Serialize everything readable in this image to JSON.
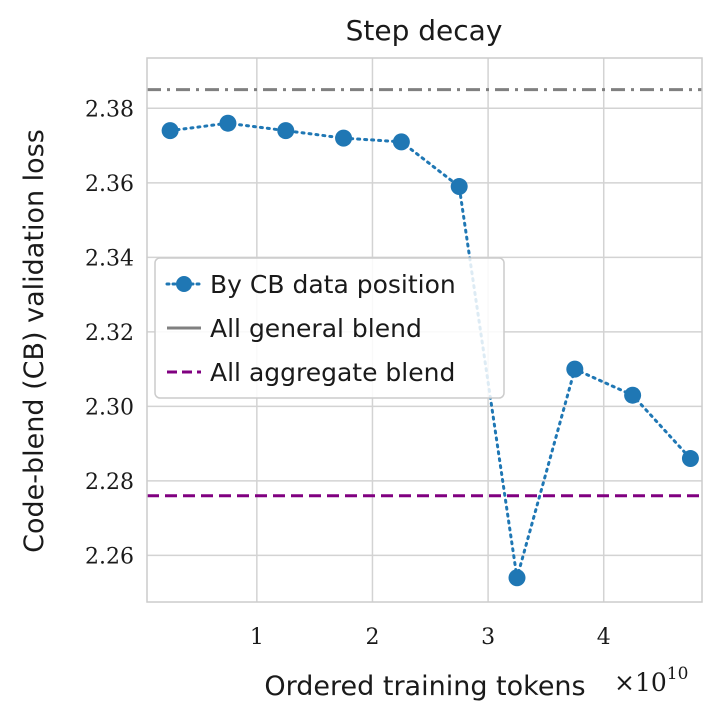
{
  "chart_data": {
    "type": "line",
    "title": "Step decay",
    "xlabel": "Ordered training tokens",
    "x_multiplier": "×10",
    "x_multiplier_exponent": "10",
    "ylabel": "Code-blend (CB) validation loss",
    "xlim": [
      0.05,
      4.85
    ],
    "ylim": [
      2.2475,
      2.3935
    ],
    "xticks": [
      1,
      2,
      3,
      4
    ],
    "yticks": [
      2.26,
      2.28,
      2.3,
      2.32,
      2.34,
      2.36,
      2.38
    ],
    "grid": true,
    "legend_position": "center-left",
    "series": [
      {
        "name": "By CB data position",
        "style": "dotted-with-markers",
        "color": "#1f77b4",
        "x": [
          0.25,
          0.75,
          1.25,
          1.75,
          2.25,
          2.75,
          3.25,
          3.75,
          4.25,
          4.75
        ],
        "y": [
          2.374,
          2.376,
          2.374,
          2.372,
          2.371,
          2.359,
          2.254,
          2.31,
          2.303,
          2.286
        ]
      },
      {
        "name": "All general blend",
        "style": "dash-dot",
        "color": "#808080",
        "y": 2.385
      },
      {
        "name": "All aggregate blend",
        "style": "dashed",
        "color": "#800080",
        "y": 2.276
      }
    ]
  }
}
